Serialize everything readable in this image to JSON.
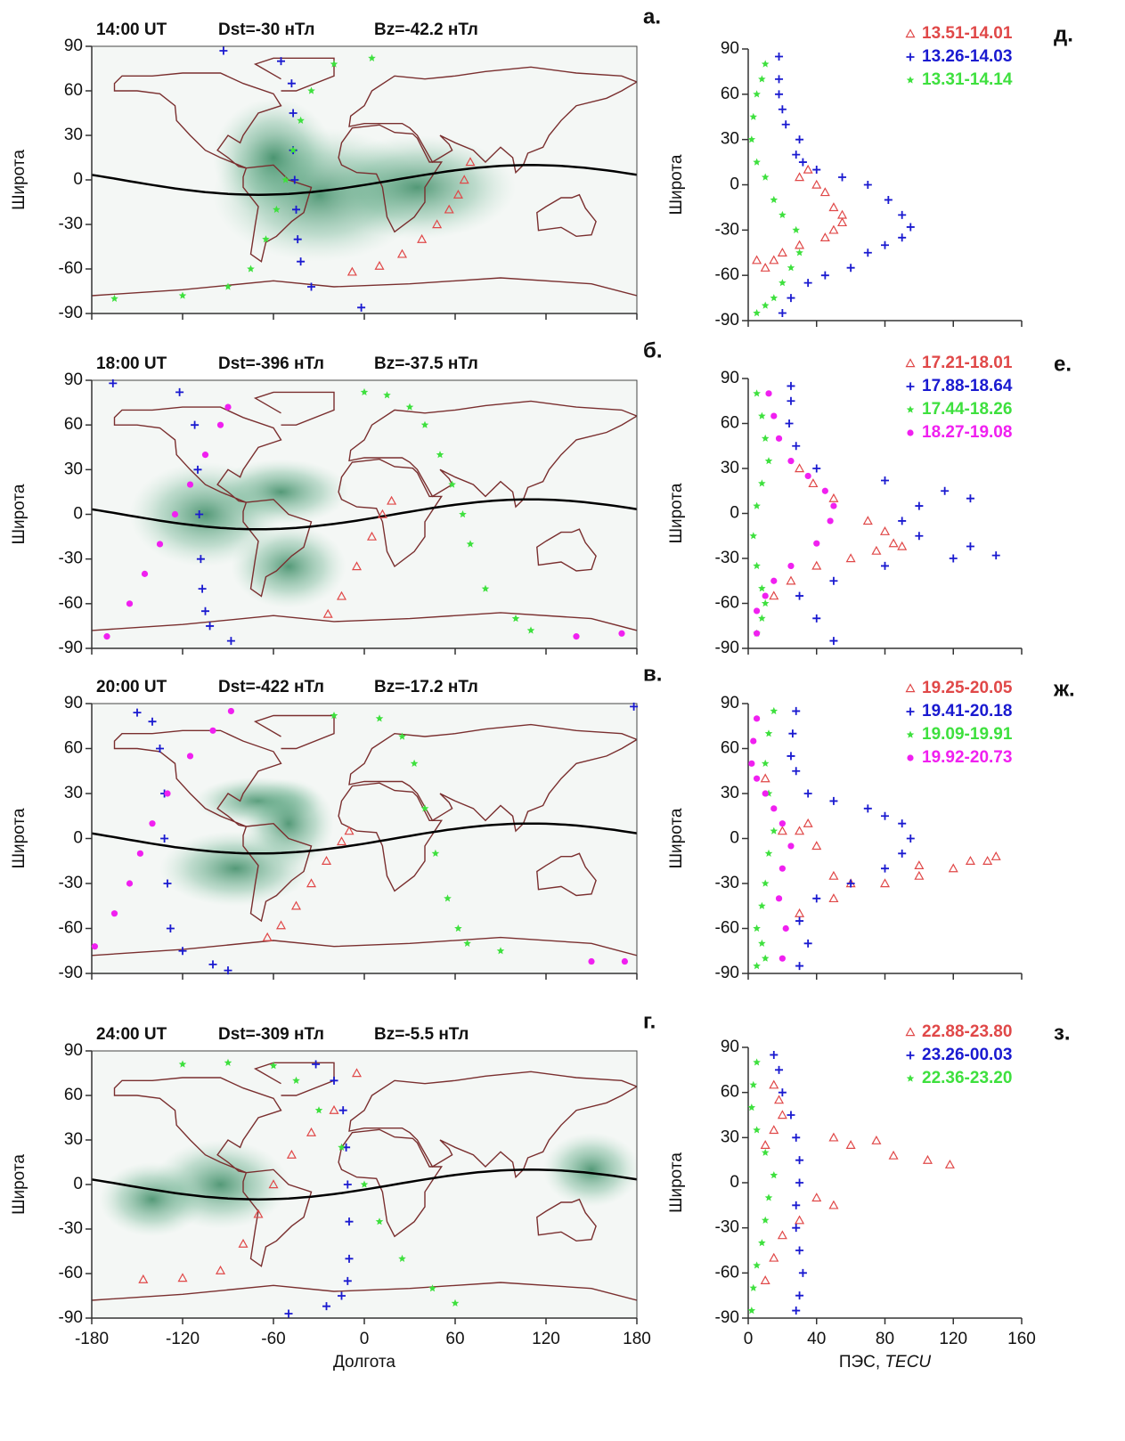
{
  "chart_data": [
    {
      "type": "map",
      "panel": "а.",
      "title": "14:00 UT",
      "dst": "Dst=-30 нТл",
      "bz": "Bz=-42.2 нТл",
      "ylabel": "Широта",
      "xlim": [
        -180,
        180
      ],
      "ylim": [
        -90,
        90
      ],
      "xticks": [
        -180,
        -120,
        -60,
        0,
        60,
        120,
        180
      ],
      "yticks": [
        -90,
        -60,
        -30,
        0,
        30,
        60,
        90
      ],
      "series": [
        {
          "color": "#e04848",
          "marker": "triangle",
          "x": [
            -8,
            10,
            25,
            38,
            48,
            56,
            62,
            66,
            70
          ],
          "y": [
            -62,
            -58,
            -50,
            -40,
            -30,
            -20,
            -10,
            0,
            12
          ]
        },
        {
          "color": "#1a1ad0",
          "marker": "plus",
          "x": [
            -93,
            -55,
            -48,
            -47,
            -47,
            -46,
            -45,
            -44,
            -42,
            -35,
            -2
          ],
          "y": [
            87,
            80,
            65,
            45,
            20,
            0,
            -20,
            -40,
            -55,
            -72,
            -86
          ]
        },
        {
          "color": "#3ee03e",
          "marker": "star",
          "x": [
            -165,
            -120,
            -90,
            -75,
            -65,
            -58,
            -52,
            -47,
            -42,
            -35,
            -20,
            5
          ],
          "y": [
            -80,
            -78,
            -72,
            -60,
            -40,
            -20,
            0,
            20,
            40,
            60,
            78,
            82
          ]
        }
      ]
    },
    {
      "type": "map",
      "panel": "б.",
      "title": "18:00 UT",
      "dst": "Dst=-396 нТл",
      "bz": "Bz=-37.5 нТл",
      "ylabel": "Широта",
      "xlim": [
        -180,
        180
      ],
      "ylim": [
        -90,
        90
      ],
      "xticks": [
        -180,
        -120,
        -60,
        0,
        60,
        120,
        180
      ],
      "yticks": [
        -90,
        -60,
        -30,
        0,
        30,
        60,
        90
      ],
      "series": [
        {
          "color": "#e04848",
          "marker": "triangle",
          "x": [
            -24,
            -15,
            -5,
            5,
            12,
            18
          ],
          "y": [
            -67,
            -55,
            -35,
            -15,
            0,
            9
          ]
        },
        {
          "color": "#1a1ad0",
          "marker": "plus",
          "x": [
            -166,
            -122,
            -112,
            -110,
            -109,
            -108,
            -107,
            -105,
            -102,
            -88
          ],
          "y": [
            88,
            82,
            60,
            30,
            0,
            -30,
            -50,
            -65,
            -75,
            -85
          ]
        },
        {
          "color": "#3ee03e",
          "marker": "star",
          "x": [
            0,
            15,
            30,
            40,
            50,
            58,
            65,
            70,
            80,
            100,
            110
          ],
          "y": [
            82,
            80,
            72,
            60,
            40,
            20,
            0,
            -20,
            -50,
            -70,
            -78
          ]
        },
        {
          "color": "#f020f0",
          "marker": "circle",
          "x": [
            -170,
            -155,
            -145,
            -135,
            -125,
            -115,
            -105,
            -95,
            -90,
            140,
            170
          ],
          "y": [
            -82,
            -60,
            -40,
            -20,
            0,
            20,
            40,
            60,
            72,
            -82,
            -80
          ]
        }
      ]
    },
    {
      "type": "map",
      "panel": "в.",
      "title": "20:00 UT",
      "dst": "Dst=-422 нТл",
      "bz": "Bz=-17.2 нТл",
      "ylabel": "Широта",
      "xlim": [
        -180,
        180
      ],
      "ylim": [
        -90,
        90
      ],
      "xticks": [
        -180,
        -120,
        -60,
        0,
        60,
        120,
        180
      ],
      "yticks": [
        -90,
        -60,
        -30,
        0,
        30,
        60,
        90
      ],
      "series": [
        {
          "color": "#e04848",
          "marker": "triangle",
          "x": [
            -64,
            -55,
            -45,
            -35,
            -25,
            -15,
            -10
          ],
          "y": [
            -66,
            -58,
            -45,
            -30,
            -15,
            -2,
            5
          ]
        },
        {
          "color": "#1a1ad0",
          "marker": "plus",
          "x": [
            -150,
            -140,
            -135,
            -132,
            -132,
            -130,
            -128,
            -120,
            -100,
            -90,
            178
          ],
          "y": [
            84,
            78,
            60,
            30,
            0,
            -30,
            -60,
            -75,
            -84,
            -88,
            88
          ]
        },
        {
          "color": "#3ee03e",
          "marker": "star",
          "x": [
            -20,
            10,
            25,
            33,
            40,
            47,
            55,
            62,
            68,
            90
          ],
          "y": [
            82,
            80,
            68,
            50,
            20,
            -10,
            -40,
            -60,
            -70,
            -75
          ]
        },
        {
          "color": "#f020f0",
          "marker": "circle",
          "x": [
            -178,
            -165,
            -155,
            -148,
            -140,
            -130,
            -115,
            -100,
            -88,
            150,
            172
          ],
          "y": [
            -72,
            -50,
            -30,
            -10,
            10,
            30,
            55,
            72,
            85,
            -82,
            -82
          ]
        }
      ]
    },
    {
      "type": "map",
      "panel": "г.",
      "title": "24:00 UT",
      "dst": "Dst=-309 нТл",
      "bz": "Bz=-5.5 нТл",
      "ylabel": "Широта",
      "xlabel": "Долгота",
      "xlim": [
        -180,
        180
      ],
      "ylim": [
        -90,
        90
      ],
      "xticks": [
        -180,
        -120,
        -60,
        0,
        60,
        120,
        180
      ],
      "yticks": [
        -90,
        -60,
        -30,
        0,
        30,
        60,
        90
      ],
      "series": [
        {
          "color": "#e04848",
          "marker": "triangle",
          "x": [
            -146,
            -120,
            -95,
            -80,
            -70,
            -60,
            -48,
            -35,
            -20,
            -5
          ],
          "y": [
            -64,
            -63,
            -58,
            -40,
            -20,
            0,
            20,
            35,
            50,
            75
          ]
        },
        {
          "color": "#1a1ad0",
          "marker": "plus",
          "x": [
            -32,
            -20,
            -14,
            -12,
            -11,
            -10,
            -10,
            -11,
            -15,
            -25,
            -50
          ],
          "y": [
            81,
            70,
            50,
            25,
            0,
            -25,
            -50,
            -65,
            -75,
            -82,
            -87
          ]
        },
        {
          "color": "#3ee03e",
          "marker": "star",
          "x": [
            -120,
            -90,
            -60,
            -45,
            -30,
            -15,
            0,
            10,
            25,
            45,
            60
          ],
          "y": [
            81,
            82,
            80,
            70,
            50,
            25,
            0,
            -25,
            -50,
            -70,
            -80
          ]
        }
      ]
    },
    {
      "type": "scatter",
      "panel": "д.",
      "ylabel": "Широта",
      "xlim": [
        0,
        160
      ],
      "ylim": [
        -90,
        90
      ],
      "xticks": [
        0,
        40,
        80,
        120,
        160
      ],
      "yticks": [
        -90,
        -60,
        -30,
        0,
        30,
        60,
        90
      ],
      "series": [
        {
          "name": "13.51-14.01",
          "color": "#e04848",
          "marker": "triangle",
          "x": [
            30,
            35,
            40,
            45,
            50,
            55,
            55,
            50,
            45,
            30,
            20,
            15,
            10,
            5
          ],
          "y": [
            5,
            10,
            0,
            -5,
            -15,
            -20,
            -25,
            -30,
            -35,
            -40,
            -45,
            -50,
            -55,
            -50
          ]
        },
        {
          "name": "13.26-14.03",
          "color": "#1a1ad0",
          "marker": "plus",
          "x": [
            18,
            18,
            18,
            20,
            22,
            30,
            28,
            32,
            40,
            55,
            70,
            82,
            90,
            95,
            90,
            80,
            70,
            60,
            45,
            35,
            25,
            20
          ],
          "y": [
            85,
            70,
            60,
            50,
            40,
            30,
            20,
            15,
            10,
            5,
            0,
            -10,
            -20,
            -28,
            -35,
            -40,
            -45,
            -55,
            -60,
            -65,
            -75,
            -85
          ]
        },
        {
          "name": "13.31-14.14",
          "color": "#3ee03e",
          "marker": "star",
          "x": [
            10,
            8,
            5,
            3,
            2,
            5,
            10,
            15,
            20,
            28,
            30,
            25,
            20,
            15,
            10,
            5
          ],
          "y": [
            80,
            70,
            60,
            45,
            30,
            15,
            5,
            -10,
            -20,
            -30,
            -45,
            -55,
            -65,
            -75,
            -80,
            -85
          ]
        }
      ]
    },
    {
      "type": "scatter",
      "panel": "е.",
      "ylabel": "Широта",
      "xlim": [
        0,
        160
      ],
      "ylim": [
        -90,
        90
      ],
      "xticks": [
        0,
        40,
        80,
        120,
        160
      ],
      "yticks": [
        -90,
        -60,
        -30,
        0,
        30,
        60,
        90
      ],
      "series": [
        {
          "name": "17.21-18.01",
          "color": "#e04848",
          "marker": "triangle",
          "x": [
            30,
            38,
            50,
            70,
            80,
            85,
            90,
            75,
            60,
            40,
            25,
            15
          ],
          "y": [
            30,
            20,
            10,
            -5,
            -12,
            -20,
            -22,
            -25,
            -30,
            -35,
            -45,
            -55
          ]
        },
        {
          "name": "17.88-18.64",
          "color": "#1a1ad0",
          "marker": "plus",
          "x": [
            25,
            25,
            24,
            28,
            40,
            80,
            115,
            130,
            100,
            90,
            100,
            130,
            145,
            120,
            80,
            50,
            30,
            40,
            50
          ],
          "y": [
            85,
            75,
            60,
            45,
            30,
            22,
            15,
            10,
            5,
            -5,
            -15,
            -22,
            -28,
            -30,
            -35,
            -45,
            -55,
            -70,
            -85
          ]
        },
        {
          "name": "17.44-18.26",
          "color": "#3ee03e",
          "marker": "star",
          "x": [
            5,
            8,
            10,
            12,
            8,
            5,
            3,
            5,
            8,
            10,
            8,
            5
          ],
          "y": [
            80,
            65,
            50,
            35,
            20,
            5,
            -15,
            -35,
            -50,
            -60,
            -70,
            -80
          ]
        },
        {
          "name": "18.27-19.08",
          "color": "#f020f0",
          "marker": "circle",
          "x": [
            12,
            15,
            18,
            25,
            35,
            45,
            50,
            48,
            40,
            25,
            15,
            10,
            5,
            5
          ],
          "y": [
            80,
            65,
            50,
            35,
            25,
            15,
            5,
            -5,
            -20,
            -35,
            -45,
            -55,
            -65,
            -80
          ]
        }
      ]
    },
    {
      "type": "scatter",
      "panel": "ж.",
      "ylabel": "Широта",
      "xlim": [
        0,
        160
      ],
      "ylim": [
        -90,
        90
      ],
      "xticks": [
        0,
        40,
        80,
        120,
        160
      ],
      "yticks": [
        -90,
        -60,
        -30,
        0,
        30,
        60,
        90
      ],
      "series": [
        {
          "name": "19.25-20.05",
          "color": "#e04848",
          "marker": "triangle",
          "x": [
            10,
            20,
            30,
            35,
            40,
            50,
            60,
            80,
            100,
            120,
            130,
            140,
            145,
            100,
            50,
            30
          ],
          "y": [
            40,
            5,
            5,
            10,
            -5,
            -25,
            -30,
            -30,
            -25,
            -20,
            -15,
            -15,
            -12,
            -18,
            -40,
            -50
          ]
        },
        {
          "name": "19.41-20.18",
          "color": "#1a1ad0",
          "marker": "plus",
          "x": [
            28,
            26,
            25,
            28,
            35,
            50,
            70,
            80,
            90,
            95,
            90,
            80,
            60,
            40,
            30,
            35,
            30
          ],
          "y": [
            85,
            70,
            55,
            45,
            30,
            25,
            20,
            15,
            10,
            0,
            -10,
            -20,
            -30,
            -40,
            -55,
            -70,
            -85
          ]
        },
        {
          "name": "19.09-19.91",
          "color": "#3ee03e",
          "marker": "star",
          "x": [
            15,
            12,
            10,
            12,
            15,
            12,
            10,
            8,
            5,
            8,
            10,
            5
          ],
          "y": [
            85,
            70,
            50,
            30,
            5,
            -10,
            -30,
            -45,
            -60,
            -70,
            -80,
            -85
          ]
        },
        {
          "name": "19.92-20.73",
          "color": "#f020f0",
          "marker": "circle",
          "x": [
            5,
            3,
            2,
            5,
            10,
            15,
            20,
            25,
            20,
            18,
            22,
            20
          ],
          "y": [
            80,
            65,
            50,
            40,
            30,
            20,
            10,
            -5,
            -20,
            -40,
            -60,
            -80
          ]
        }
      ]
    },
    {
      "type": "scatter",
      "panel": "з.",
      "ylabel": "Широта",
      "xlabel": "ПЭС,",
      "xunit": "TECU",
      "xlim": [
        0,
        160
      ],
      "ylim": [
        -90,
        90
      ],
      "xticks": [
        0,
        40,
        80,
        120,
        160
      ],
      "yticks": [
        -90,
        -60,
        -30,
        0,
        30,
        60,
        90
      ],
      "series": [
        {
          "name": "22.88-23.80",
          "color": "#e04848",
          "marker": "triangle",
          "x": [
            15,
            18,
            20,
            15,
            10,
            50,
            60,
            75,
            85,
            105,
            118,
            50,
            40,
            30,
            20,
            15,
            10
          ],
          "y": [
            65,
            55,
            45,
            35,
            25,
            30,
            25,
            28,
            18,
            15,
            12,
            -15,
            -10,
            -25,
            -35,
            -50,
            -65
          ]
        },
        {
          "name": "23.26-00.03",
          "color": "#1a1ad0",
          "marker": "plus",
          "x": [
            15,
            18,
            20,
            25,
            28,
            30,
            30,
            28,
            28,
            30,
            32,
            30,
            28
          ],
          "y": [
            85,
            75,
            60,
            45,
            30,
            15,
            0,
            -15,
            -30,
            -45,
            -60,
            -75,
            -85
          ]
        },
        {
          "name": "22.36-23.20",
          "color": "#3ee03e",
          "marker": "star",
          "x": [
            5,
            3,
            2,
            5,
            10,
            15,
            12,
            10,
            8,
            5,
            3,
            2
          ],
          "y": [
            80,
            65,
            50,
            35,
            20,
            5,
            -10,
            -25,
            -40,
            -55,
            -70,
            -85
          ]
        }
      ]
    }
  ]
}
